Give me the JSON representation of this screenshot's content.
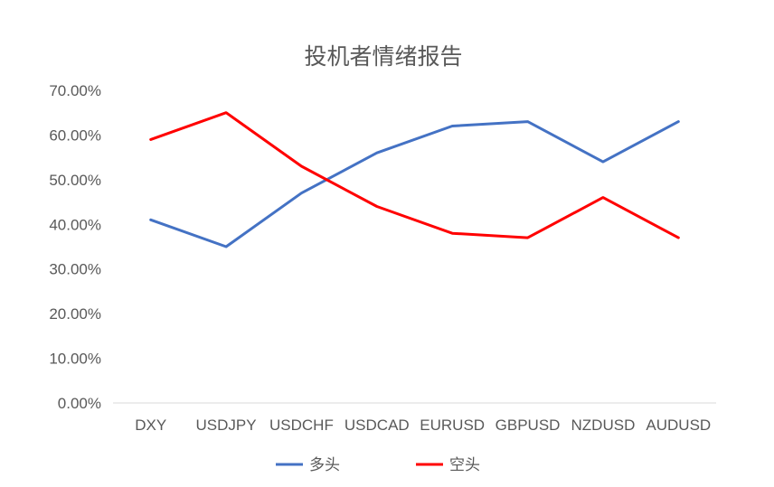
{
  "chart_data": {
    "type": "line",
    "title": "投机者情绪报告",
    "categories": [
      "DXY",
      "USDJPY",
      "USDCHF",
      "USDCAD",
      "EURUSD",
      "GBPUSD",
      "NZDUSD",
      "AUDUSD"
    ],
    "series": [
      {
        "name": "多头",
        "color": "#4472C4",
        "values": [
          0.41,
          0.35,
          0.47,
          0.56,
          0.62,
          0.63,
          0.54,
          0.63
        ]
      },
      {
        "name": "空头",
        "color": "#FF0000",
        "values": [
          0.59,
          0.65,
          0.53,
          0.44,
          0.38,
          0.37,
          0.46,
          0.37
        ]
      }
    ],
    "ylim": [
      0,
      0.7
    ],
    "yticks": [
      "0.00%",
      "10.00%",
      "20.00%",
      "30.00%",
      "40.00%",
      "50.00%",
      "60.00%",
      "70.00%"
    ],
    "grid": false,
    "legend_position": "bottom",
    "axis_color": "#D9D9D9"
  }
}
